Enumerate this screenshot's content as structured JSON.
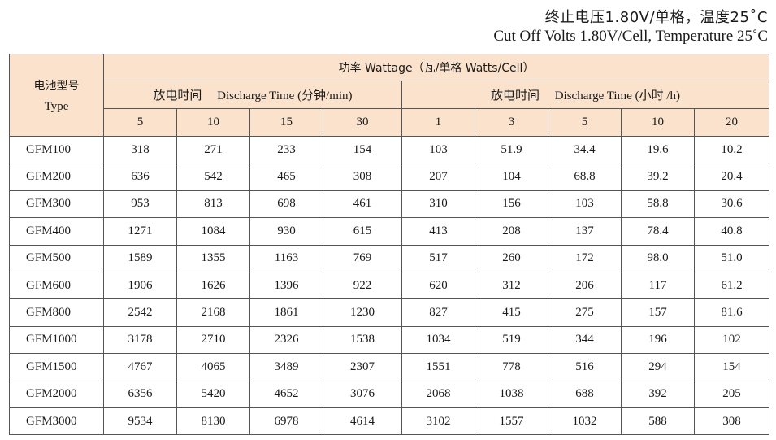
{
  "title": {
    "cn": "终止电压1.80V/单格，温度25˚C",
    "en": "Cut Off Volts 1.80V/Cell, Temperature 25˚C"
  },
  "header": {
    "type_cn": "电池型号",
    "type_en": "Type",
    "wattage": "功率 Wattage（瓦/单格 Watts/Cell）",
    "group_min": "放电时间　 Discharge Time (分钟/min)",
    "group_h": "放电时间　 Discharge Time (小时 /h)",
    "times": [
      "5",
      "10",
      "15",
      "30",
      "1",
      "3",
      "5",
      "10",
      "20"
    ]
  },
  "rows": [
    {
      "model": "GFM100",
      "values": [
        "318",
        "271",
        "233",
        "154",
        "103",
        "51.9",
        "34.4",
        "19.6",
        "10.2"
      ]
    },
    {
      "model": "GFM200",
      "values": [
        "636",
        "542",
        "465",
        "308",
        "207",
        "104",
        "68.8",
        "39.2",
        "20.4"
      ]
    },
    {
      "model": "GFM300",
      "values": [
        "953",
        "813",
        "698",
        "461",
        "310",
        "156",
        "103",
        "58.8",
        "30.6"
      ]
    },
    {
      "model": "GFM400",
      "values": [
        "1271",
        "1084",
        "930",
        "615",
        "413",
        "208",
        "137",
        "78.4",
        "40.8"
      ]
    },
    {
      "model": "GFM500",
      "values": [
        "1589",
        "1355",
        "1163",
        "769",
        "517",
        "260",
        "172",
        "98.0",
        "51.0"
      ]
    },
    {
      "model": "GFM600",
      "values": [
        "1906",
        "1626",
        "1396",
        "922",
        "620",
        "312",
        "206",
        "117",
        "61.2"
      ]
    },
    {
      "model": "GFM800",
      "values": [
        "2542",
        "2168",
        "1861",
        "1230",
        "827",
        "415",
        "275",
        "157",
        "81.6"
      ]
    },
    {
      "model": "GFM1000",
      "values": [
        "3178",
        "2710",
        "2326",
        "1538",
        "1034",
        "519",
        "344",
        "196",
        "102"
      ]
    },
    {
      "model": "GFM1500",
      "values": [
        "4767",
        "4065",
        "3489",
        "2307",
        "1551",
        "778",
        "516",
        "294",
        "154"
      ]
    },
    {
      "model": "GFM2000",
      "values": [
        "6356",
        "5420",
        "4652",
        "3076",
        "2068",
        "1038",
        "688",
        "392",
        "205"
      ]
    },
    {
      "model": "GFM3000",
      "values": [
        "9534",
        "8130",
        "6978",
        "4614",
        "3102",
        "1557",
        "1032",
        "588",
        "308"
      ]
    }
  ],
  "colors": {
    "header_bg": "#fbe2cc",
    "border": "#555555"
  }
}
